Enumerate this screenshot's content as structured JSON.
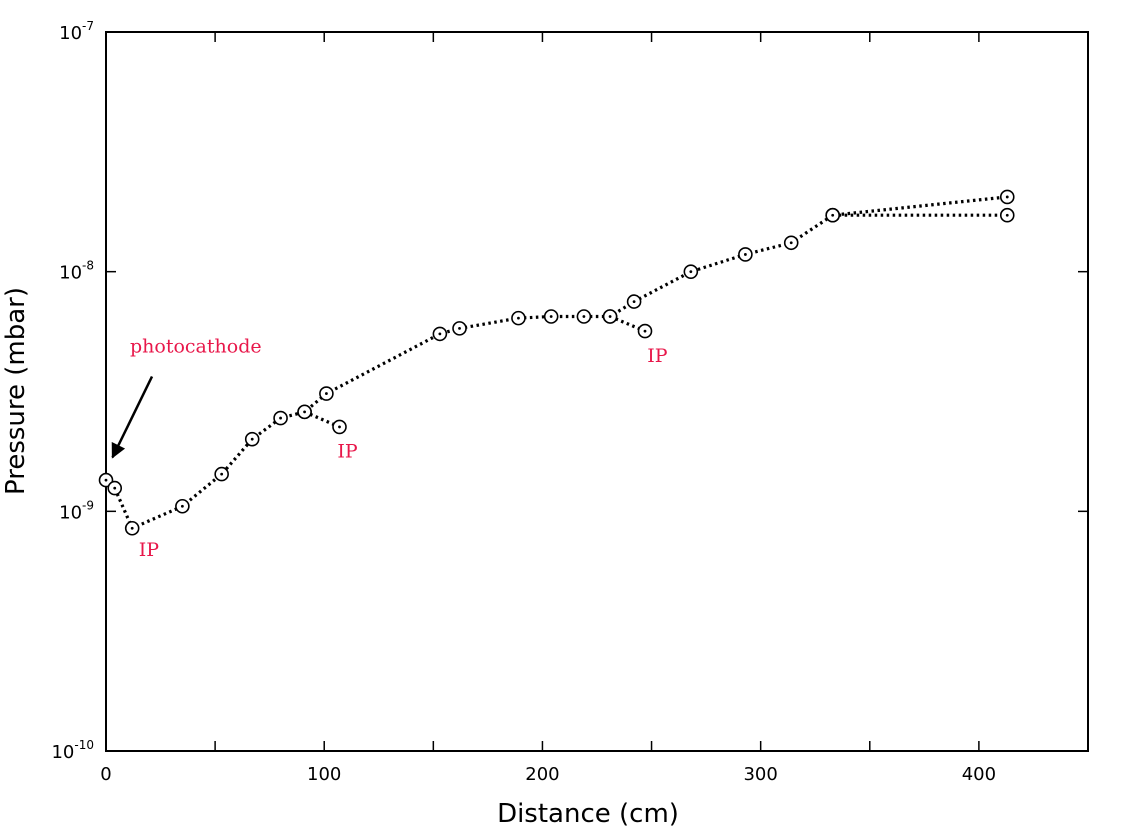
{
  "chart_data": {
    "type": "scatter",
    "xlabel": "Distance (cm)",
    "ylabel": "Pressure (mbar)",
    "xlim": [
      0,
      450
    ],
    "ylim": [
      1e-10,
      1e-07
    ],
    "y_scale": "log",
    "grid": false,
    "x_ticks": [
      0,
      100,
      200,
      300,
      400
    ],
    "y_ticks": [
      {
        "value": 1e-10,
        "base": "10",
        "exp": "-10"
      },
      {
        "value": 1e-09,
        "base": "10",
        "exp": "-9"
      },
      {
        "value": 1e-08,
        "base": "10",
        "exp": "-8"
      },
      {
        "value": 1e-07,
        "base": "10",
        "exp": "-7"
      }
    ],
    "series": [
      {
        "marker": "circle-dot",
        "line_style": "dotted",
        "color": "#000000",
        "points": [
          [
            0,
            1.35e-09
          ],
          [
            4,
            1.25e-09
          ],
          [
            12,
            8.5e-10
          ],
          [
            35,
            1.05e-09
          ],
          [
            53,
            1.43e-09
          ],
          [
            67,
            2e-09
          ],
          [
            80,
            2.45e-09
          ],
          [
            91,
            2.6e-09
          ],
          [
            101,
            3.1e-09
          ],
          [
            153,
            5.5e-09
          ],
          [
            162,
            5.8e-09
          ],
          [
            189,
            6.4e-09
          ],
          [
            204,
            6.5e-09
          ],
          [
            219,
            6.5e-09
          ],
          [
            231,
            6.5e-09
          ],
          [
            242,
            7.5e-09
          ],
          [
            268,
            1e-08
          ],
          [
            293,
            1.18e-08
          ],
          [
            314,
            1.32e-08
          ],
          [
            333,
            1.72e-08
          ],
          [
            413,
            2.05e-08
          ]
        ]
      },
      {
        "marker": "circle-dot",
        "line_style": "dotted",
        "color": "#000000",
        "points": [
          [
            91,
            2.6e-09
          ],
          [
            107,
            2.25e-09
          ]
        ]
      },
      {
        "marker": "circle-dot",
        "line_style": "dotted",
        "color": "#000000",
        "points": [
          [
            231,
            6.5e-09
          ],
          [
            247,
            5.65e-09
          ]
        ]
      },
      {
        "marker": "circle-dot",
        "line_style": "dotted",
        "color": "#000000",
        "points": [
          [
            333,
            1.72e-08
          ],
          [
            413,
            1.72e-08
          ]
        ]
      }
    ],
    "annotations": [
      {
        "text": "photocathode",
        "x": 11,
        "y": 4.6e-09,
        "color": "#e8174a",
        "arrow_to": [
          3,
          1.68e-09
        ]
      },
      {
        "text": "IP",
        "x": 15,
        "y": 6.5e-10,
        "color": "#e8174a"
      },
      {
        "text": "IP",
        "x": 106,
        "y": 1.68e-09,
        "color": "#e8174a"
      },
      {
        "text": "IP",
        "x": 248,
        "y": 4.2e-09,
        "color": "#e8174a"
      }
    ]
  }
}
